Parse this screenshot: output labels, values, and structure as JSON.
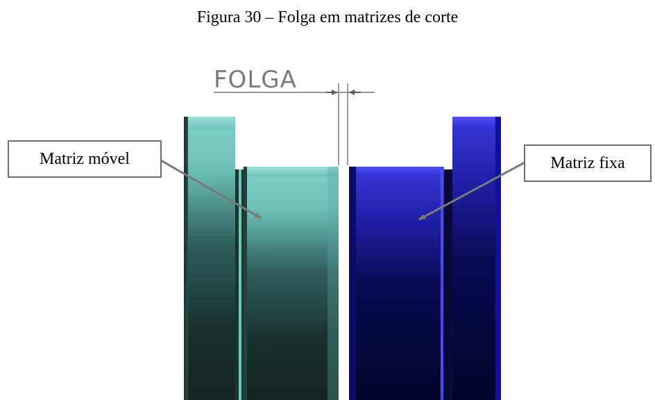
{
  "caption": "Figura 30 – Folga em matrizes de corte",
  "dimension_label": "FOLGA",
  "labels": {
    "left": "Matriz móvel",
    "right": "Matriz fixa"
  },
  "colors": {
    "movable_die": "#7fd1c7",
    "fixed_die": "#2d2ed6",
    "callout_border": "#6e6e6e"
  }
}
